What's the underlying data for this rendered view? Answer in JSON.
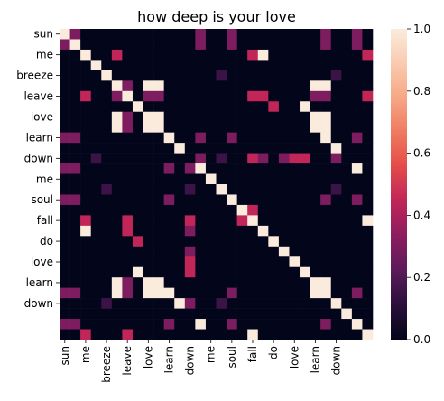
{
  "chart_data": {
    "type": "heatmap",
    "title": "how deep is your love",
    "xlabel": "",
    "ylabel": "",
    "y_tick_labels": [
      "sun",
      "me",
      "breeze",
      "leave",
      "love",
      "learn",
      "down",
      "me",
      "soul",
      "fall",
      "do",
      "love",
      "learn",
      "down"
    ],
    "x_tick_labels": [
      "sun",
      "me",
      "breeze",
      "leave",
      "love",
      "learn",
      "down",
      "me",
      "soul",
      "fall",
      "do",
      "love",
      "learn",
      "down"
    ],
    "rows": [
      [
        1,
        0.3,
        0,
        0,
        0,
        0,
        0,
        0,
        0,
        0,
        0,
        0,
        0,
        0.3,
        0,
        0,
        0.3,
        0,
        0,
        0,
        0,
        0,
        0,
        0,
        0,
        0.3,
        0,
        0,
        0.3,
        0
      ],
      [
        0.3,
        1,
        0,
        0,
        0,
        0,
        0,
        0,
        0,
        0,
        0,
        0,
        0,
        0.3,
        0,
        0,
        0.3,
        0,
        0,
        0,
        0,
        0,
        0,
        0,
        0,
        0.3,
        0,
        0,
        0.3,
        0
      ],
      [
        0,
        0,
        1,
        0,
        0,
        0.45,
        0,
        0,
        0,
        0,
        0,
        0,
        0,
        0,
        0,
        0,
        0,
        0,
        0.45,
        1,
        0,
        0,
        0,
        0,
        0,
        0,
        0,
        0,
        0,
        0.45
      ],
      [
        0,
        0,
        0,
        1,
        0,
        0,
        0,
        0,
        0,
        0,
        0,
        0,
        0,
        0,
        0,
        0,
        0,
        0,
        0,
        0,
        0,
        0,
        0,
        0,
        0,
        0,
        0,
        0,
        0,
        0
      ],
      [
        0,
        0,
        0,
        0,
        1,
        0,
        0,
        0,
        0,
        0,
        0,
        0,
        0,
        0,
        0,
        0.15,
        0,
        0,
        0,
        0,
        0,
        0,
        0,
        0,
        0,
        0,
        0.15,
        0,
        0,
        0
      ],
      [
        0,
        0,
        0,
        0,
        0,
        1,
        0.3,
        0,
        1,
        1,
        0,
        0,
        0,
        0,
        0,
        0,
        0,
        0,
        0,
        0,
        0,
        0,
        0,
        0,
        1,
        1,
        0,
        0,
        0,
        0
      ],
      [
        0,
        0,
        0.45,
        0,
        0,
        0.3,
        1,
        0,
        0.3,
        0.3,
        0,
        0,
        0,
        0,
        0,
        0,
        0,
        0,
        0.45,
        0.45,
        0,
        0,
        0,
        0,
        0.3,
        0.3,
        0,
        0,
        0,
        0.45
      ],
      [
        0,
        0,
        0,
        0,
        0,
        0,
        0,
        1,
        0,
        0,
        0,
        0,
        0,
        0,
        0,
        0,
        0,
        0,
        0,
        0,
        0.45,
        0,
        0,
        1,
        0,
        0,
        0,
        0,
        0,
        0
      ],
      [
        0,
        0,
        0,
        0,
        0,
        1,
        0.3,
        0,
        1,
        1,
        0,
        0,
        0,
        0,
        0,
        0,
        0,
        0,
        0,
        0,
        0,
        0,
        0,
        0,
        1,
        1,
        0,
        0,
        0,
        0
      ],
      [
        0,
        0,
        0,
        0,
        0,
        1,
        0.3,
        0,
        1,
        1,
        0,
        0,
        0,
        0,
        0,
        0,
        0,
        0,
        0,
        0,
        0,
        0,
        0,
        0,
        1,
        1,
        0,
        0,
        0,
        0
      ],
      [
        0.3,
        0.3,
        0,
        0,
        0,
        0,
        0,
        0,
        0,
        0,
        1,
        0,
        0,
        0.3,
        0,
        0,
        0.3,
        0,
        0,
        0,
        0,
        0,
        0,
        0,
        0,
        1,
        0,
        0,
        0.3,
        0
      ],
      [
        0,
        0,
        0,
        0,
        0,
        0,
        0,
        0,
        0,
        0,
        0,
        1,
        0,
        0,
        0,
        0,
        0,
        0,
        0,
        0,
        0,
        0,
        0,
        0,
        0,
        0,
        1,
        0,
        0,
        0
      ],
      [
        0,
        0,
        0,
        0.15,
        0,
        0,
        0,
        0,
        0,
        0,
        0,
        0,
        0,
        0.3,
        0,
        0.15,
        0,
        0,
        0.45,
        0.3,
        0,
        0.3,
        0.45,
        0.45,
        0,
        0,
        0.3,
        0,
        0,
        0
      ],
      [
        0.3,
        0.3,
        0,
        0,
        0,
        0,
        0,
        0,
        0,
        0,
        0.3,
        0,
        0.3,
        1,
        0,
        0,
        0,
        0,
        0,
        0,
        0,
        0,
        0,
        0,
        0,
        0,
        0,
        0,
        1,
        0
      ],
      [
        0,
        0,
        0,
        0,
        0,
        0,
        0,
        0,
        0,
        0,
        0,
        0,
        0,
        0,
        1,
        0,
        0,
        0,
        0,
        0,
        0,
        0,
        0,
        0,
        0,
        0,
        0,
        0,
        0,
        0
      ],
      [
        0,
        0,
        0,
        0,
        0.15,
        0,
        0,
        0,
        0,
        0,
        0,
        0,
        0.15,
        0,
        0,
        1,
        0,
        0,
        0,
        0,
        0,
        0,
        0,
        0,
        0,
        0,
        0.15,
        0,
        0,
        0
      ],
      [
        0.3,
        0.3,
        0,
        0,
        0,
        0,
        0,
        0,
        0,
        0,
        0.3,
        0,
        0,
        0,
        0,
        0,
        1,
        0,
        0,
        0,
        0,
        0,
        0,
        0,
        0,
        0.3,
        0,
        0,
        0.3,
        0
      ],
      [
        0,
        0,
        0,
        0,
        0,
        0,
        0,
        0,
        0,
        0,
        0,
        0,
        0,
        0,
        0,
        0,
        0,
        1,
        0.45,
        0,
        0,
        0,
        0,
        0,
        0,
        0,
        0,
        0,
        0,
        0
      ],
      [
        0,
        0,
        0.45,
        0,
        0,
        0,
        0.45,
        0,
        0,
        0,
        0,
        0,
        0.45,
        0,
        0,
        0,
        0,
        0.45,
        1,
        0,
        0,
        0,
        0,
        0,
        0,
        0,
        0,
        0,
        0,
        1
      ],
      [
        0,
        0,
        1,
        0,
        0,
        0,
        0.45,
        0,
        0,
        0,
        0,
        0,
        0.3,
        0,
        0,
        0,
        0,
        0,
        0,
        1,
        0,
        0,
        0,
        0,
        0,
        0,
        0,
        0,
        0,
        0
      ],
      [
        0,
        0,
        0,
        0,
        0,
        0,
        0,
        0.45,
        0,
        0,
        0,
        0,
        0,
        0,
        0,
        0,
        0,
        0,
        0,
        0,
        1,
        0,
        0,
        0,
        0,
        0,
        0,
        0,
        0,
        0
      ],
      [
        0,
        0,
        0,
        0,
        0,
        0,
        0,
        0,
        0,
        0,
        0,
        0,
        0.3,
        0,
        0,
        0,
        0,
        0,
        0,
        0,
        0,
        1,
        0,
        0,
        0,
        0,
        0,
        0,
        0,
        0
      ],
      [
        0,
        0,
        0,
        0,
        0,
        0,
        0,
        0,
        0,
        0,
        0,
        0,
        0.45,
        0,
        0,
        0,
        0,
        0,
        0,
        0,
        0,
        0,
        1,
        0,
        0,
        0,
        0,
        0,
        0,
        0
      ],
      [
        0,
        0,
        0,
        0,
        0,
        0,
        0,
        1,
        0,
        0,
        0,
        0,
        0.45,
        0,
        0,
        0,
        0,
        0,
        0,
        0,
        0,
        0,
        0,
        1,
        0,
        0,
        0,
        0,
        0,
        0
      ],
      [
        0,
        0,
        0,
        0,
        0,
        1,
        0.3,
        0,
        1,
        1,
        0,
        0,
        0,
        0,
        0,
        0,
        0,
        0,
        0,
        0,
        0,
        0,
        0,
        0,
        1,
        1,
        0,
        0,
        0,
        0
      ],
      [
        0.3,
        0.3,
        0,
        0,
        0,
        1,
        0.3,
        0,
        1,
        1,
        1,
        0,
        0,
        0,
        0,
        0,
        0.3,
        0,
        0,
        0,
        0,
        0,
        0,
        0,
        1,
        1,
        0,
        0,
        0.3,
        0
      ],
      [
        0,
        0,
        0,
        0,
        0.15,
        0,
        0,
        0,
        0,
        0,
        0,
        1,
        0.3,
        0,
        0,
        0.15,
        0,
        0,
        0,
        0,
        0,
        0,
        0,
        0,
        0,
        0,
        1,
        0,
        0,
        0
      ],
      [
        0,
        0,
        0,
        0,
        0,
        0,
        0,
        0,
        0,
        0,
        0,
        0,
        0,
        0,
        0,
        0,
        0,
        0,
        0,
        0,
        0,
        0,
        0,
        0,
        0,
        0,
        0,
        1,
        0,
        0
      ],
      [
        0.3,
        0.3,
        0,
        0,
        0,
        0,
        0,
        0,
        0,
        0,
        0.3,
        0,
        0,
        1,
        0,
        0,
        0.3,
        0,
        0,
        0,
        0,
        0,
        0,
        0,
        0,
        0.3,
        0,
        0,
        1,
        0
      ],
      [
        0,
        0,
        0.45,
        0,
        0,
        0,
        0.45,
        0,
        0,
        0,
        0,
        0,
        0,
        0,
        0,
        0,
        0,
        0,
        1,
        0,
        0,
        0,
        0,
        0,
        0,
        0,
        0,
        0,
        0,
        1
      ]
    ],
    "colorbar": {
      "min": 0,
      "max": 1,
      "ticks": [
        "0.0",
        "0.2",
        "0.4",
        "0.6",
        "0.8",
        "1.0"
      ]
    },
    "colormap": [
      "#03051a",
      "#2b0f3a",
      "#5b1a5c",
      "#8c1d5f",
      "#c0245a",
      "#e34b4a",
      "#f0795e",
      "#f6a785",
      "#f9cbb0",
      "#faebdd"
    ]
  }
}
